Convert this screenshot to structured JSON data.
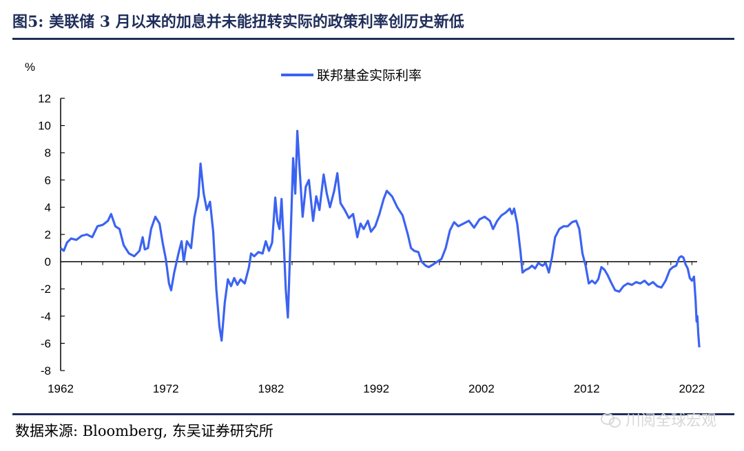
{
  "header": {
    "title": "图5:  美联储 3 月以来的加息并未能扭转实际的政策利率创历史新低"
  },
  "footer": {
    "source": "数据来源:  Bloomberg,  东吴证券研究所",
    "watermark": "川阅全球宏观"
  },
  "colors": {
    "line": "#3b63f2",
    "title": "#1f2d5a",
    "axis": "#000000"
  },
  "chart_data": {
    "type": "line",
    "ylabel": "%",
    "legend_position": "top-center",
    "ylim": [
      -8,
      12
    ],
    "yticks": [
      12,
      10,
      8,
      6,
      4,
      2,
      0,
      -2,
      -4,
      -6,
      -8
    ],
    "xlim": [
      1962,
      2022.5
    ],
    "xticks": [
      1962,
      1972,
      1982,
      1992,
      2002,
      2012,
      2022
    ],
    "grid": false,
    "series": [
      {
        "name": "联邦基金实际利率",
        "points": [
          [
            1962.0,
            1.0
          ],
          [
            1962.3,
            0.8
          ],
          [
            1962.6,
            1.4
          ],
          [
            1963.0,
            1.7
          ],
          [
            1963.5,
            1.6
          ],
          [
            1964.0,
            1.9
          ],
          [
            1964.5,
            2.0
          ],
          [
            1965.0,
            1.8
          ],
          [
            1965.5,
            2.6
          ],
          [
            1966.0,
            2.7
          ],
          [
            1966.5,
            3.0
          ],
          [
            1966.8,
            3.5
          ],
          [
            1967.2,
            2.6
          ],
          [
            1967.6,
            2.4
          ],
          [
            1968.0,
            1.2
          ],
          [
            1968.5,
            0.6
          ],
          [
            1969.0,
            0.4
          ],
          [
            1969.5,
            0.8
          ],
          [
            1969.8,
            1.8
          ],
          [
            1970.0,
            0.9
          ],
          [
            1970.3,
            1.0
          ],
          [
            1970.6,
            2.4
          ],
          [
            1971.0,
            3.3
          ],
          [
            1971.4,
            2.8
          ],
          [
            1971.7,
            1.4
          ],
          [
            1972.0,
            0.2
          ],
          [
            1972.3,
            -1.6
          ],
          [
            1972.5,
            -2.1
          ],
          [
            1972.8,
            -0.8
          ],
          [
            1973.2,
            0.6
          ],
          [
            1973.5,
            1.5
          ],
          [
            1973.7,
            0.0
          ],
          [
            1974.0,
            1.5
          ],
          [
            1974.4,
            1.0
          ],
          [
            1974.7,
            3.2
          ],
          [
            1975.1,
            4.8
          ],
          [
            1975.3,
            7.2
          ],
          [
            1975.6,
            5.0
          ],
          [
            1975.9,
            3.8
          ],
          [
            1976.2,
            4.4
          ],
          [
            1976.5,
            2.2
          ],
          [
            1976.8,
            -2.0
          ],
          [
            1977.1,
            -4.8
          ],
          [
            1977.3,
            -5.8
          ],
          [
            1977.6,
            -3.0
          ],
          [
            1977.9,
            -1.3
          ],
          [
            1978.2,
            -1.8
          ],
          [
            1978.5,
            -1.2
          ],
          [
            1978.8,
            -1.7
          ],
          [
            1979.1,
            -1.3
          ],
          [
            1979.5,
            -1.6
          ],
          [
            1979.9,
            -0.4
          ],
          [
            1980.1,
            0.6
          ],
          [
            1980.4,
            0.4
          ],
          [
            1980.8,
            0.7
          ],
          [
            1981.2,
            0.6
          ],
          [
            1981.5,
            1.5
          ],
          [
            1981.8,
            0.8
          ],
          [
            1982.1,
            1.4
          ],
          [
            1982.4,
            4.7
          ],
          [
            1982.6,
            3.0
          ],
          [
            1982.8,
            2.4
          ],
          [
            1983.0,
            4.6
          ],
          [
            1983.2,
            1.5
          ],
          [
            1983.4,
            -2.0
          ],
          [
            1983.6,
            -4.1
          ],
          [
            1983.9,
            2.8
          ],
          [
            1984.1,
            7.6
          ],
          [
            1984.3,
            5.0
          ],
          [
            1984.5,
            9.6
          ],
          [
            1984.7,
            7.0
          ],
          [
            1985.0,
            3.3
          ],
          [
            1985.3,
            5.5
          ],
          [
            1985.6,
            6.0
          ],
          [
            1986.0,
            3.0
          ],
          [
            1986.3,
            4.8
          ],
          [
            1986.6,
            3.8
          ],
          [
            1987.0,
            6.4
          ],
          [
            1987.3,
            5.0
          ],
          [
            1987.6,
            4.0
          ],
          [
            1988.0,
            5.2
          ],
          [
            1988.3,
            6.5
          ],
          [
            1988.6,
            4.3
          ],
          [
            1989.0,
            3.8
          ],
          [
            1989.4,
            3.2
          ],
          [
            1989.8,
            3.5
          ],
          [
            1990.2,
            1.8
          ],
          [
            1990.5,
            2.8
          ],
          [
            1990.8,
            2.4
          ],
          [
            1991.2,
            3.0
          ],
          [
            1991.5,
            2.2
          ],
          [
            1991.9,
            2.6
          ],
          [
            1992.3,
            3.5
          ],
          [
            1992.7,
            4.6
          ],
          [
            1993.0,
            5.2
          ],
          [
            1993.5,
            4.8
          ],
          [
            1994.0,
            4.0
          ],
          [
            1994.5,
            3.4
          ],
          [
            1995.0,
            2.0
          ],
          [
            1995.3,
            1.0
          ],
          [
            1995.6,
            0.8
          ],
          [
            1996.0,
            0.7
          ],
          [
            1996.3,
            0.0
          ],
          [
            1996.7,
            -0.3
          ],
          [
            1997.0,
            -0.4
          ],
          [
            1997.4,
            -0.2
          ],
          [
            1997.8,
            0.0
          ],
          [
            1998.2,
            0.2
          ],
          [
            1998.6,
            1.0
          ],
          [
            1999.0,
            2.3
          ],
          [
            1999.4,
            2.9
          ],
          [
            1999.8,
            2.6
          ],
          [
            2000.3,
            2.8
          ],
          [
            2000.8,
            3.0
          ],
          [
            2001.3,
            2.5
          ],
          [
            2001.8,
            3.1
          ],
          [
            2002.3,
            3.3
          ],
          [
            2002.8,
            3.0
          ],
          [
            2003.1,
            2.4
          ],
          [
            2003.5,
            3.0
          ],
          [
            2003.9,
            3.4
          ],
          [
            2004.3,
            3.6
          ],
          [
            2004.7,
            3.9
          ],
          [
            2004.9,
            3.5
          ],
          [
            2005.1,
            3.9
          ],
          [
            2005.4,
            2.8
          ],
          [
            2005.7,
            0.8
          ],
          [
            2005.9,
            -0.8
          ],
          [
            2006.2,
            -0.6
          ],
          [
            2006.5,
            -0.5
          ],
          [
            2006.8,
            -0.3
          ],
          [
            2007.1,
            -0.5
          ],
          [
            2007.4,
            -0.1
          ],
          [
            2007.8,
            -0.3
          ],
          [
            2008.1,
            -0.1
          ],
          [
            2008.4,
            -0.8
          ],
          [
            2008.7,
            0.3
          ],
          [
            2009.0,
            1.8
          ],
          [
            2009.4,
            2.4
          ],
          [
            2009.8,
            2.6
          ],
          [
            2010.2,
            2.6
          ],
          [
            2010.6,
            2.9
          ],
          [
            2011.0,
            3.0
          ],
          [
            2011.3,
            2.4
          ],
          [
            2011.6,
            0.6
          ],
          [
            2011.9,
            -0.3
          ],
          [
            2012.2,
            -1.6
          ],
          [
            2012.5,
            -1.4
          ],
          [
            2012.8,
            -1.6
          ],
          [
            2013.1,
            -1.3
          ],
          [
            2013.4,
            -0.4
          ],
          [
            2013.7,
            -0.6
          ],
          [
            2014.0,
            -1.0
          ],
          [
            2014.3,
            -1.5
          ],
          [
            2014.7,
            -2.1
          ],
          [
            2015.1,
            -2.2
          ],
          [
            2015.5,
            -1.8
          ],
          [
            2015.9,
            -1.6
          ],
          [
            2016.3,
            -1.7
          ],
          [
            2016.7,
            -1.5
          ],
          [
            2017.1,
            -1.6
          ],
          [
            2017.5,
            -1.4
          ],
          [
            2017.9,
            -1.7
          ],
          [
            2018.3,
            -1.5
          ],
          [
            2018.7,
            -1.8
          ],
          [
            2019.1,
            -1.9
          ],
          [
            2019.5,
            -1.4
          ],
          [
            2019.9,
            -0.6
          ],
          [
            2020.2,
            -0.4
          ],
          [
            2020.5,
            -0.3
          ],
          [
            2020.8,
            0.3
          ],
          [
            2021.0,
            0.4
          ],
          [
            2021.2,
            0.3
          ],
          [
            2021.4,
            -0.2
          ],
          [
            2021.6,
            -0.5
          ],
          [
            2021.8,
            -1.2
          ],
          [
            2022.0,
            -1.4
          ],
          [
            2022.2,
            -1.1
          ],
          [
            2022.35,
            -2.8
          ],
          [
            2022.45,
            -4.4
          ],
          [
            2022.52,
            -4.0
          ],
          [
            2022.6,
            -5.2
          ],
          [
            2022.7,
            -6.3
          ]
        ]
      }
    ]
  }
}
